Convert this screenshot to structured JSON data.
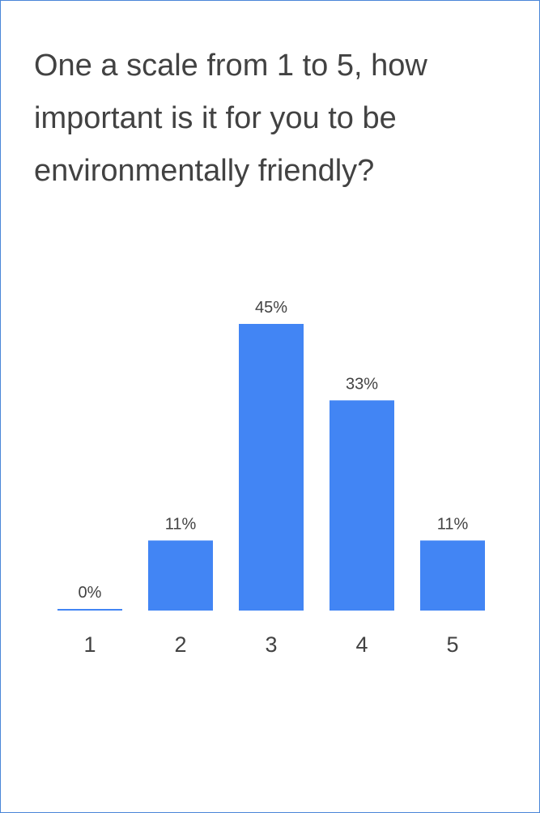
{
  "chart_data": {
    "type": "bar",
    "title": "One a scale from 1 to 5, how important is it for you to be environmentally friendly?",
    "categories": [
      "1",
      "2",
      "3",
      "4",
      "5"
    ],
    "values": [
      0,
      11,
      45,
      33,
      11
    ],
    "data_labels": [
      "0%",
      "11%",
      "45%",
      "33%",
      "11%"
    ],
    "value_unit": "%",
    "xlabel": "",
    "ylabel": "",
    "ylim": [
      0,
      45
    ],
    "grid": false,
    "legend": "none",
    "bar_color": "#4285f4"
  }
}
